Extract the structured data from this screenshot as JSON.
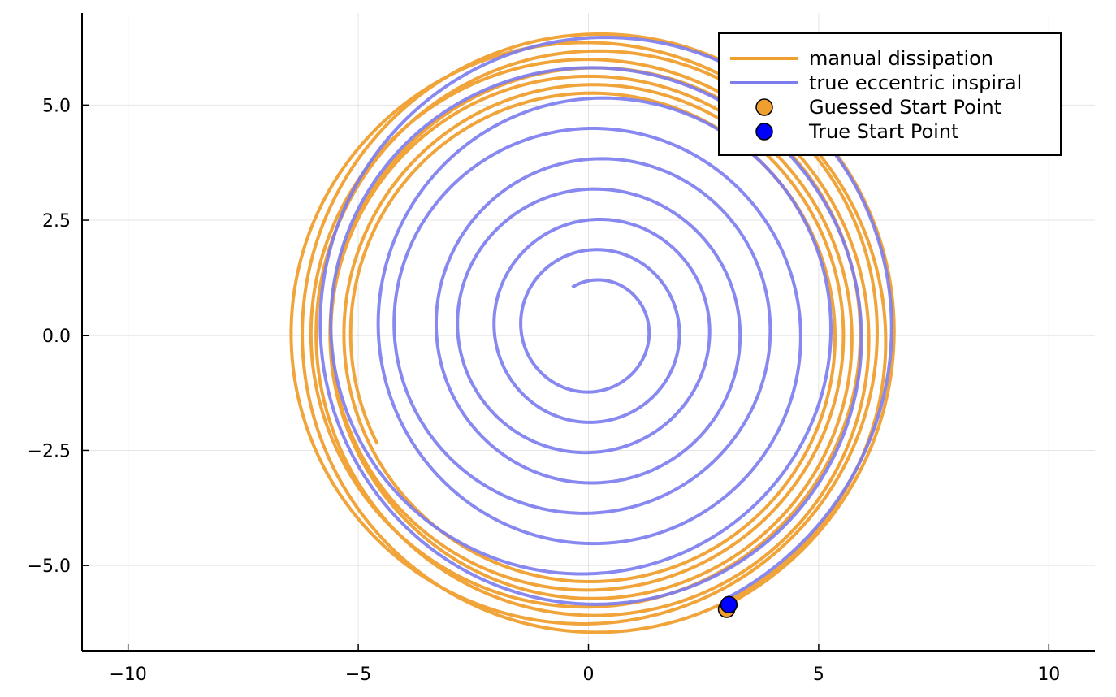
{
  "chart_data": {
    "type": "line",
    "title": "",
    "xlabel": "",
    "ylabel": "",
    "xlim": [
      -11,
      11
    ],
    "ylim": [
      -6.85,
      7.0
    ],
    "grid": true,
    "legend_position": "top-right",
    "x_ticks": [
      {
        "value": -10,
        "label": "−10"
      },
      {
        "value": -5,
        "label": "−5"
      },
      {
        "value": 0,
        "label": "0"
      },
      {
        "value": 5,
        "label": "5"
      },
      {
        "value": 10,
        "label": "10"
      }
    ],
    "y_ticks": [
      {
        "value": 5,
        "label": "5.0"
      },
      {
        "value": 2.5,
        "label": "2.5"
      },
      {
        "value": 0,
        "label": "0.0"
      },
      {
        "value": -2.5,
        "label": "−2.5"
      },
      {
        "value": -5,
        "label": "−5.0"
      }
    ],
    "series": [
      {
        "name": "manual dissipation",
        "kind": "line",
        "color": "#ef9f2f",
        "spiral": {
          "start_radius": 6.62,
          "end_radius": 5.2,
          "turns": 7.75,
          "phase_start_deg": -63,
          "center": [
            0.05,
            0.0
          ]
        }
      },
      {
        "name": "true eccentric inspiral",
        "kind": "line",
        "color": "#7b7bef",
        "spiral": {
          "start_radius": 6.6,
          "end_radius": 1.0,
          "turns": 8.5,
          "phase_start_deg": -63,
          "center": [
            0.1,
            0.15
          ]
        }
      },
      {
        "name": "Guessed Start Point",
        "kind": "point",
        "color": "#ef9f2f",
        "points": [
          {
            "x": 3.0,
            "y": -5.95
          }
        ]
      },
      {
        "name": "True Start Point",
        "kind": "point",
        "color": "#0000ff",
        "points": [
          {
            "x": 3.05,
            "y": -5.85
          }
        ]
      }
    ]
  }
}
